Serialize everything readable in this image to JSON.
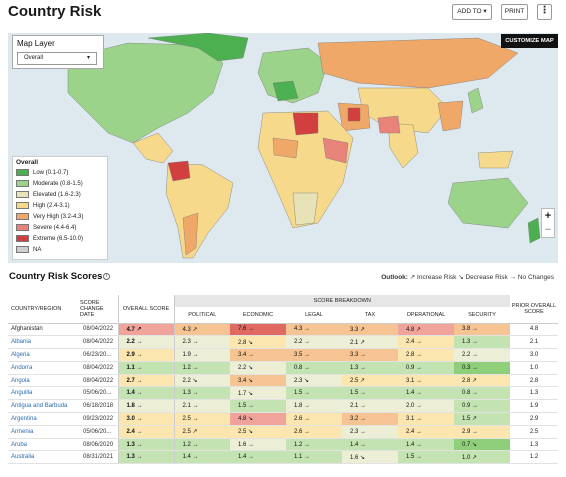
{
  "header": {
    "title": "Country Risk",
    "add_to_label": "ADD TO ▾",
    "print_label": "PRINT",
    "more_label": "⋮"
  },
  "map": {
    "customize_label": "CUSTOMIZE MAP",
    "layer_label": "Map Layer",
    "layer_selected": "Overall",
    "legend": {
      "title": "Overall",
      "items": [
        {
          "label": "Low (0.1-0.7)",
          "color": "#4caf50"
        },
        {
          "label": "Moderate (0.8-1.5)",
          "color": "#9cd38a"
        },
        {
          "label": "Elevated (1.6-2.3)",
          "color": "#e8e3b6"
        },
        {
          "label": "High (2.4-3.1)",
          "color": "#f7d98c"
        },
        {
          "label": "Very High (3.2-4.3)",
          "color": "#f0a868"
        },
        {
          "label": "Severe (4.4-6.4)",
          "color": "#e8837a"
        },
        {
          "label": "Extreme (6.5-10.0)",
          "color": "#d13f3f"
        },
        {
          "label": "NA",
          "color": "#cfcfcf"
        }
      ]
    },
    "zoom_in": "+",
    "zoom_out": "−"
  },
  "scores": {
    "title": "Country Risk Scores",
    "outlook_label": "Outlook:",
    "outlook_increase": "↗ Increase Risk",
    "outlook_decrease": "↘ Decrease Risk",
    "outlook_nochange": "→ No Changes",
    "outlook_arrow": "→",
    "columns": {
      "country": "COUNTRY/REGION",
      "date": "SCORE CHANGE DATE",
      "overall": "OVERALL SCORE",
      "breakdown": "SCORE BREAKDOWN",
      "political": "POLITICAL",
      "economic": "ECONOMIC",
      "legal": "LEGAL",
      "tax": "TAX",
      "operational": "OPERATIONAL",
      "security": "SECURITY",
      "prior": "PRIOR OVERALL SCORE"
    },
    "rows": [
      {
        "country": "Afghanistan",
        "date": "08/04/2022",
        "overall": "4.7 ↗",
        "political": "4.3 ↗",
        "economic": "7.6 →",
        "legal": "4.3 →",
        "tax": "3.3 ↗",
        "operational": "4.8 ↗",
        "security": "3.8 →",
        "prior": "4.8"
      },
      {
        "country": "Albania",
        "date": "08/04/2022",
        "overall": "2.2 →",
        "political": "2.3 →",
        "economic": "2.8 ↘",
        "legal": "2.2 →",
        "tax": "2.1 ↗",
        "operational": "2.4 →",
        "security": "1.3 →",
        "prior": "2.1"
      },
      {
        "country": "Algeria",
        "date": "06/23/20...",
        "overall": "2.9 →",
        "political": "1.9 →",
        "economic": "3.4 →",
        "legal": "3.5 →",
        "tax": "3.3 →",
        "operational": "2.8 →",
        "security": "2.2 →",
        "prior": "3.0"
      },
      {
        "country": "Andorra",
        "date": "08/04/2022",
        "overall": "1.1 →",
        "political": "1.2 →",
        "economic": "2.2 ↘",
        "legal": "0.8 →",
        "tax": "1.3 →",
        "operational": "0.9 →",
        "security": "0.3 →",
        "prior": "1.0"
      },
      {
        "country": "Angola",
        "date": "08/04/2022",
        "overall": "2.7 →",
        "political": "2.2 ↘",
        "economic": "3.4 ↘",
        "legal": "2.3 ↘",
        "tax": "2.5 ↗",
        "operational": "3.1 →",
        "security": "2.8 ↗",
        "prior": "2.8"
      },
      {
        "country": "Anguilla",
        "date": "05/06/20...",
        "overall": "1.4 →",
        "political": "1.3 →",
        "economic": "1.7 ↘",
        "legal": "1.5 →",
        "tax": "1.5 →",
        "operational": "1.4 →",
        "security": "0.8 →",
        "prior": "1.3"
      },
      {
        "country": "Antigua and Barbuda",
        "date": "06/18/2018",
        "overall": "1.8 →",
        "political": "2.1 →",
        "economic": "1.5 →",
        "legal": "1.8 →",
        "tax": "2.1 →",
        "operational": "2.0 →",
        "security": "0.9 →",
        "prior": "1.9"
      },
      {
        "country": "Argentina",
        "date": "09/23/2022",
        "overall": "3.0 →",
        "political": "2.5 →",
        "economic": "4.8 ↘",
        "legal": "2.6 →",
        "tax": "3.2 →",
        "operational": "3.1 →",
        "security": "1.5 ↗",
        "prior": "2.9"
      },
      {
        "country": "Armenia",
        "date": "05/06/20...",
        "overall": "2.4 →",
        "political": "2.5 ↗",
        "economic": "2.5 ↘",
        "legal": "2.6 →",
        "tax": "2.3 →",
        "operational": "2.4 →",
        "security": "2.9 →",
        "prior": "2.5"
      },
      {
        "country": "Aruba",
        "date": "08/06/2020",
        "overall": "1.3 →",
        "political": "1.2 →",
        "economic": "1.6 →",
        "legal": "1.2 →",
        "tax": "1.4 →",
        "operational": "1.4 →",
        "security": "0.7 ↘",
        "prior": "1.3"
      },
      {
        "country": "Australia",
        "date": "08/31/2021",
        "overall": "1.3 →",
        "political": "1.4 →",
        "economic": "1.4 →",
        "legal": "1.1 →",
        "tax": "1.6 ↘",
        "operational": "1.5 →",
        "security": "1.0 ↗",
        "prior": "1.2"
      }
    ]
  }
}
